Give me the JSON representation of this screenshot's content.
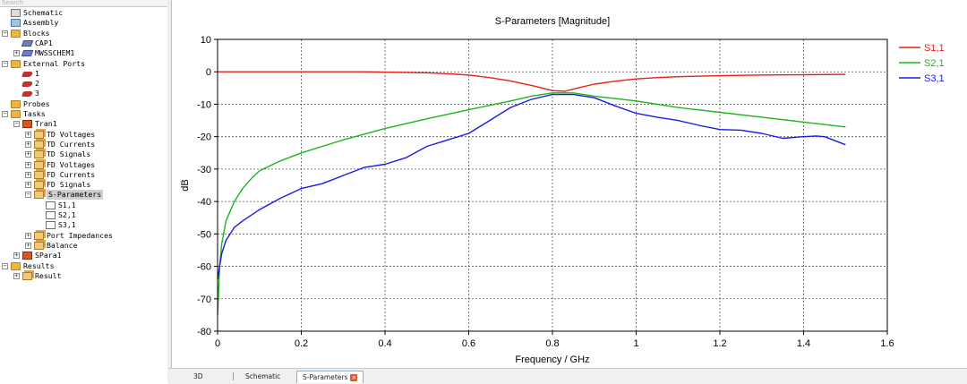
{
  "sidebar": {
    "search_placeholder": "Search",
    "items": [
      {
        "label": "Schematic",
        "icon": "schematic-icon"
      },
      {
        "label": "Assembly",
        "icon": "assembly-icon"
      },
      {
        "label": "Blocks",
        "icon": "folder-icon",
        "expanded": true
      },
      {
        "label": "CAP1",
        "icon": "block-icon"
      },
      {
        "label": "MWSSCHEM1",
        "icon": "block-icon",
        "expanded": false
      },
      {
        "label": "External Ports",
        "icon": "folder-icon",
        "expanded": true
      },
      {
        "label": "1",
        "icon": "port-icon"
      },
      {
        "label": "2",
        "icon": "port-icon"
      },
      {
        "label": "3",
        "icon": "port-icon"
      },
      {
        "label": "Probes",
        "icon": "folder-icon"
      },
      {
        "label": "Tasks",
        "icon": "folder-icon",
        "expanded": true
      },
      {
        "label": "Tran1",
        "icon": "task-icon",
        "expanded": true
      },
      {
        "label": "TD Voltages",
        "icon": "result-folder-icon",
        "expanded": false
      },
      {
        "label": "TD Currents",
        "icon": "result-folder-icon",
        "expanded": false
      },
      {
        "label": "TD Signals",
        "icon": "result-folder-icon",
        "expanded": false
      },
      {
        "label": "FD Voltages",
        "icon": "result-folder-icon",
        "expanded": false
      },
      {
        "label": "FD Currents",
        "icon": "result-folder-icon",
        "expanded": false
      },
      {
        "label": "FD Signals",
        "icon": "result-folder-icon",
        "expanded": false
      },
      {
        "label": "S-Parameters",
        "icon": "result-folder-icon",
        "expanded": true,
        "selected": true
      },
      {
        "label": "S1,1",
        "icon": "signal-icon"
      },
      {
        "label": "S2,1",
        "icon": "signal-icon"
      },
      {
        "label": "S3,1",
        "icon": "signal-icon"
      },
      {
        "label": "Port Impedances",
        "icon": "result-folder-icon",
        "expanded": false
      },
      {
        "label": "Balance",
        "icon": "result-folder-icon",
        "expanded": false
      },
      {
        "label": "SPara1",
        "icon": "task-icon",
        "expanded": false
      },
      {
        "label": "Results",
        "icon": "folder-icon",
        "expanded": true
      },
      {
        "label": "Result",
        "icon": "result-folder-icon",
        "expanded": false
      }
    ]
  },
  "tabs": [
    {
      "label": "3D",
      "active": false
    },
    {
      "label": "Schematic",
      "active": false
    },
    {
      "label": "S-Parameters",
      "active": true
    }
  ],
  "chart_data": {
    "type": "line",
    "title": "S-Parameters [Magnitude]",
    "xlabel": "Frequency / GHz",
    "ylabel": "dB",
    "xlim": [
      0,
      1.6
    ],
    "ylim": [
      -80,
      10
    ],
    "xticks": [
      0,
      0.2,
      0.4,
      0.6,
      0.8,
      1,
      1.2,
      1.4,
      1.6
    ],
    "yticks": [
      10,
      0,
      -10,
      -20,
      -30,
      -40,
      -50,
      -60,
      -70,
      -80
    ],
    "grid": true,
    "legend_position": "right",
    "series": [
      {
        "name": "S1,1",
        "color": "#e8201a",
        "x": [
          0,
          0.1,
          0.2,
          0.3,
          0.35,
          0.4,
          0.45,
          0.5,
          0.55,
          0.6,
          0.65,
          0.7,
          0.75,
          0.8,
          0.83,
          0.86,
          0.9,
          0.95,
          1.0,
          1.05,
          1.1,
          1.2,
          1.3,
          1.4,
          1.5
        ],
        "y": [
          0,
          0,
          0,
          0,
          0,
          -0.1,
          -0.2,
          -0.3,
          -0.6,
          -1.0,
          -1.8,
          -2.8,
          -4.2,
          -5.8,
          -6.0,
          -5.0,
          -3.8,
          -2.9,
          -2.2,
          -1.8,
          -1.5,
          -1.2,
          -1.0,
          -0.9,
          -0.8
        ]
      },
      {
        "name": "S2,1",
        "color": "#1db51d",
        "x": [
          0,
          0.005,
          0.01,
          0.02,
          0.04,
          0.06,
          0.08,
          0.1,
          0.15,
          0.2,
          0.3,
          0.4,
          0.5,
          0.6,
          0.7,
          0.75,
          0.8,
          0.85,
          0.9,
          1.0,
          1.1,
          1.2,
          1.3,
          1.4,
          1.5
        ],
        "y": [
          -75,
          -60,
          -53,
          -46,
          -40,
          -36,
          -33,
          -30.5,
          -27.5,
          -25,
          -21,
          -17.5,
          -14.5,
          -11.7,
          -9,
          -7.5,
          -6.5,
          -6.5,
          -7.5,
          -9,
          -11,
          -12.5,
          -14,
          -15.5,
          -17
        ]
      },
      {
        "name": "S3,1",
        "color": "#1a1ae8",
        "x": [
          0,
          0.005,
          0.01,
          0.02,
          0.04,
          0.06,
          0.1,
          0.15,
          0.2,
          0.25,
          0.3,
          0.35,
          0.4,
          0.45,
          0.5,
          0.55,
          0.6,
          0.65,
          0.7,
          0.75,
          0.8,
          0.85,
          0.9,
          0.95,
          1.0,
          1.05,
          1.1,
          1.15,
          1.2,
          1.25,
          1.3,
          1.35,
          1.4,
          1.43,
          1.45,
          1.5
        ],
        "y": [
          -64,
          -60,
          -56,
          -52,
          -48,
          -46,
          -42.5,
          -39,
          -36,
          -34.5,
          -32,
          -29.5,
          -28.5,
          -26.5,
          -23,
          -21,
          -19,
          -15,
          -11,
          -8.5,
          -7,
          -7,
          -8,
          -10.5,
          -12.8,
          -14,
          -15,
          -16.5,
          -17.8,
          -18,
          -19,
          -20.5,
          -20,
          -19.8,
          -20,
          -22.5
        ]
      }
    ]
  }
}
